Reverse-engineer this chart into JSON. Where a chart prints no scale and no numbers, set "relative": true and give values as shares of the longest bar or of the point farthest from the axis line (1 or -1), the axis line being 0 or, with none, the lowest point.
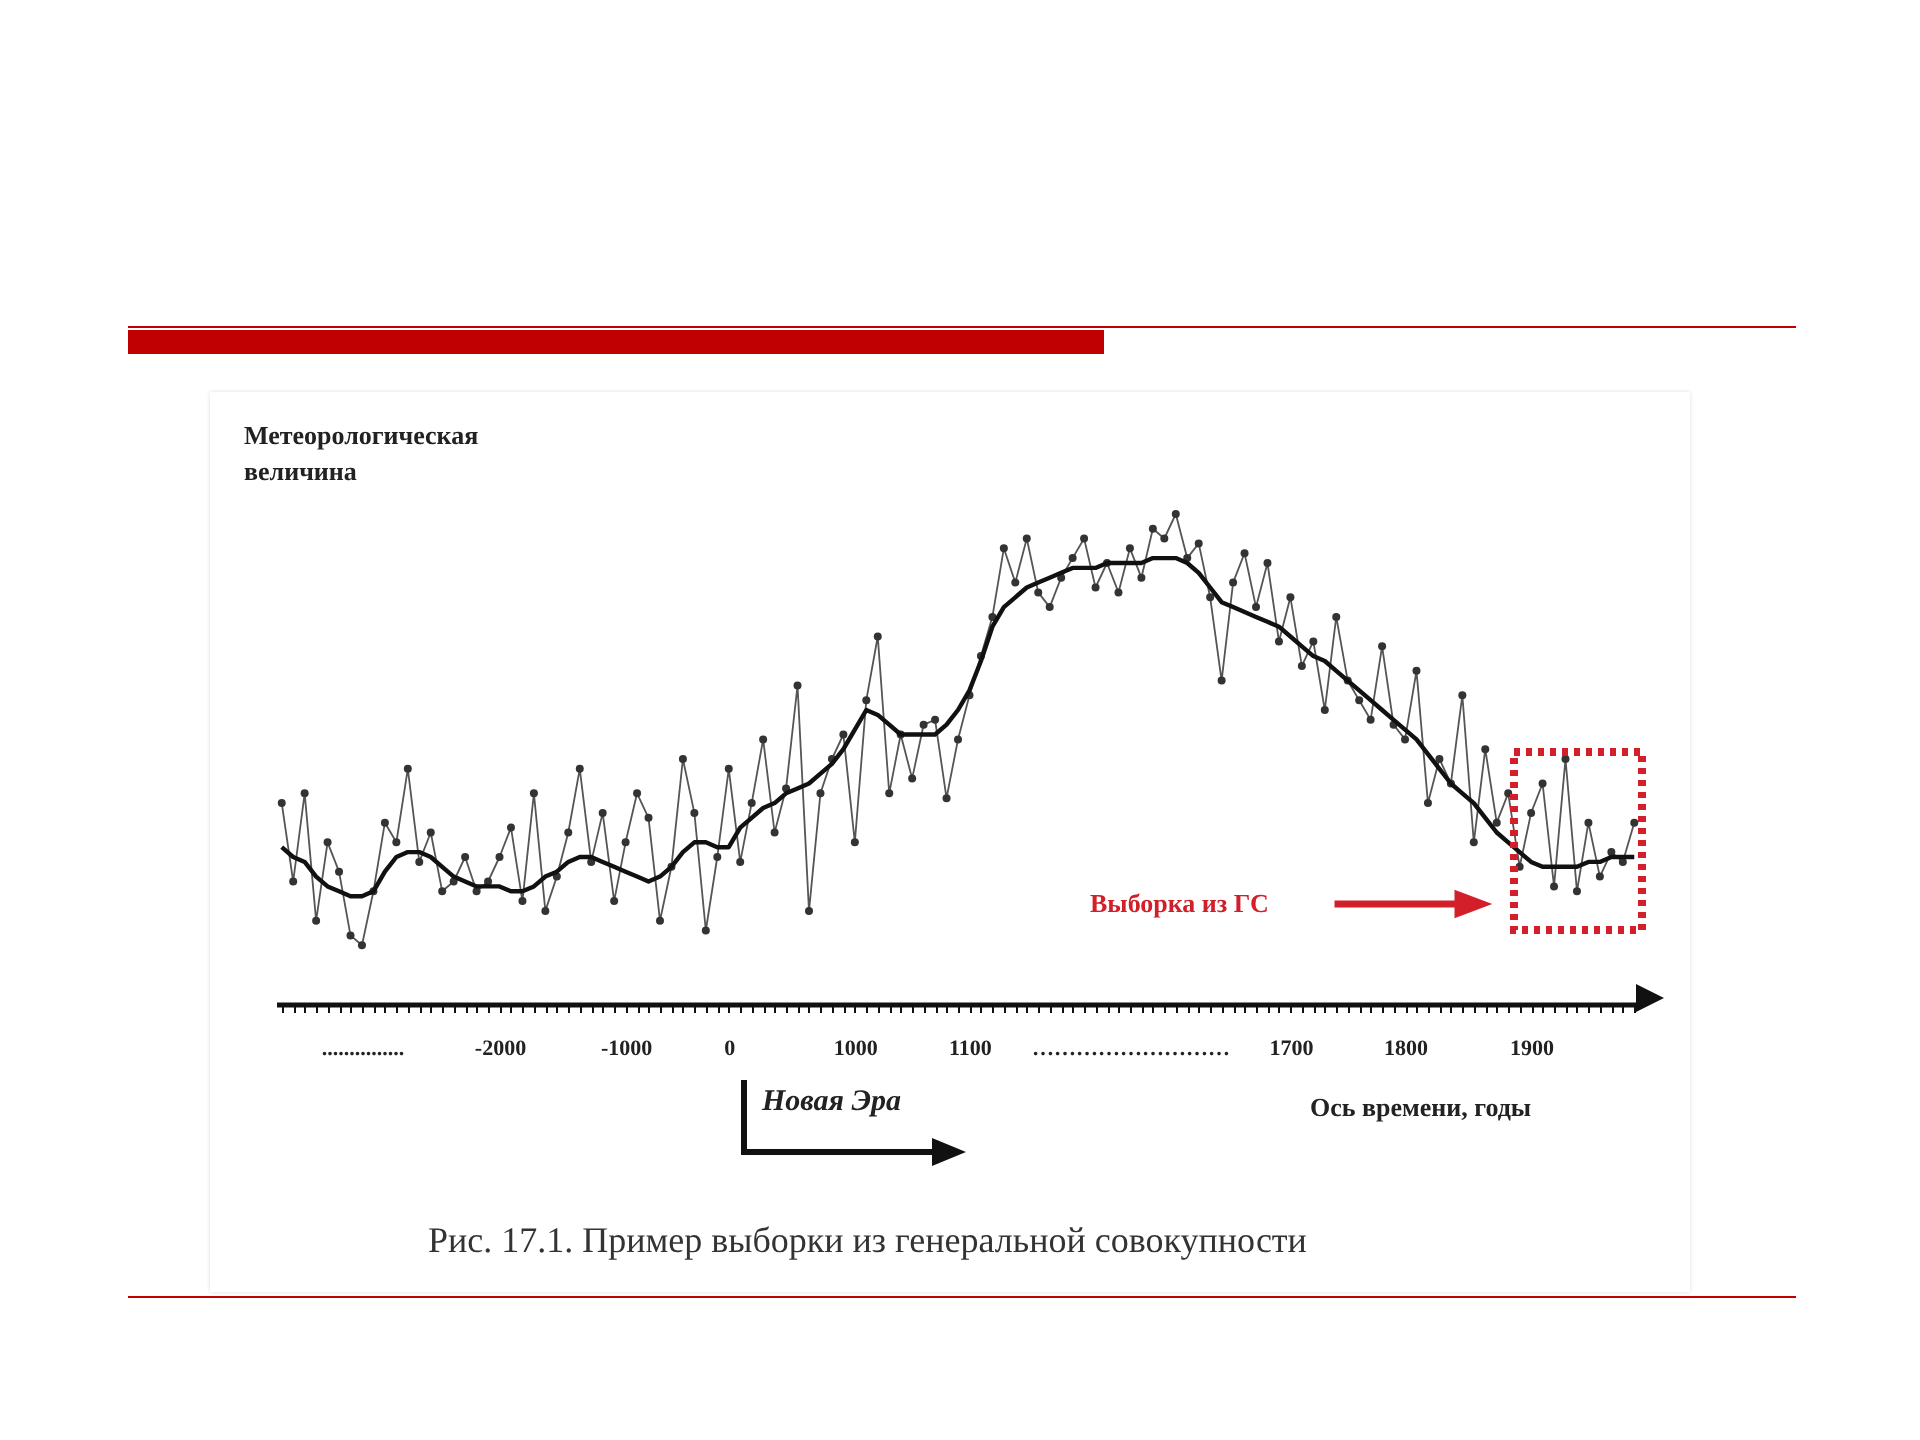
{
  "chart_data": {
    "type": "line",
    "relative": true,
    "xlabel": "Ось времени, годы",
    "ylabel": "Метеорологическая величина",
    "annotations": [
      "Выборка из ГС",
      "Новая Эра",
      "Рис. 17.1. Пример выборки из генеральной совокупности"
    ],
    "categories": [
      null,
      null,
      null,
      null,
      null,
      null,
      null,
      "...............",
      null,
      null,
      null,
      null,
      null,
      null,
      null,
      null,
      null,
      null,
      null,
      "-2000",
      null,
      null,
      null,
      null,
      null,
      null,
      null,
      null,
      null,
      null,
      "-1000",
      null,
      null,
      null,
      null,
      null,
      null,
      null,
      null,
      "0",
      null,
      null,
      null,
      null,
      null,
      null,
      null,
      null,
      null,
      null,
      "1000",
      null,
      null,
      null,
      null,
      null,
      null,
      null,
      null,
      null,
      "1100",
      null,
      null,
      null,
      null,
      null,
      null,
      null,
      null,
      null,
      null,
      null,
      null,
      null,
      "………………………",
      null,
      null,
      null,
      null,
      null,
      null,
      null,
      null,
      null,
      null,
      null,
      null,
      null,
      "1700",
      null,
      null,
      null,
      null,
      null,
      null,
      null,
      null,
      null,
      "1800",
      null,
      null,
      null,
      null,
      null,
      null,
      null,
      null,
      null,
      null,
      "1900",
      null,
      null,
      null,
      null,
      null,
      null,
      null,
      null,
      null
    ],
    "grid": false,
    "line_style": "solid",
    "series": [
      {
        "color": "#555555",
        "marker": "circle",
        "values": [
          0.41,
          0.25,
          0.43,
          0.17,
          0.33,
          0.27,
          0.14,
          0.12,
          0.23,
          0.37,
          0.33,
          0.48,
          0.29,
          0.35,
          0.23,
          0.25,
          0.3,
          0.23,
          0.25,
          0.3,
          0.36,
          0.21,
          0.43,
          0.19,
          0.26,
          0.35,
          0.48,
          0.29,
          0.39,
          0.21,
          0.33,
          0.43,
          0.38,
          0.17,
          0.28,
          0.5,
          0.39,
          0.15,
          0.3,
          0.48,
          0.29,
          0.41,
          0.54,
          0.35,
          0.44,
          0.65,
          0.19,
          0.43,
          0.5,
          0.55,
          0.33,
          0.62,
          0.75,
          0.43,
          0.55,
          0.46,
          0.57,
          0.58,
          0.42,
          0.54,
          0.63,
          0.71,
          0.79,
          0.93,
          0.86,
          0.95,
          0.84,
          0.81,
          0.87,
          0.91,
          0.95,
          0.85,
          0.9,
          0.84,
          0.93,
          0.87,
          0.97,
          0.95,
          1,
          0.91,
          0.94,
          0.83,
          0.66,
          0.86,
          0.92,
          0.81,
          0.9,
          0.74,
          0.83,
          0.69,
          0.74,
          0.6,
          0.79,
          0.66,
          0.62,
          0.58,
          0.73,
          0.57,
          0.54,
          0.68,
          0.41,
          0.5,
          0.45,
          0.63,
          0.33,
          0.52,
          0.37,
          0.43,
          0.28,
          0.39,
          0.45,
          0.24,
          0.5,
          0.23,
          0.37,
          0.26,
          0.31,
          0.29,
          0.37
        ]
      },
      {
        "color": "#111111",
        "marker": "none",
        "values": [
          0.32,
          0.3,
          0.29,
          0.26,
          0.24,
          0.23,
          0.22,
          0.22,
          0.23,
          0.27,
          0.3,
          0.31,
          0.31,
          0.3,
          0.28,
          0.26,
          0.25,
          0.24,
          0.24,
          0.24,
          0.23,
          0.23,
          0.24,
          0.26,
          0.27,
          0.29,
          0.3,
          0.3,
          0.29,
          0.28,
          0.27,
          0.26,
          0.25,
          0.26,
          0.28,
          0.31,
          0.33,
          0.33,
          0.32,
          0.32,
          0.36,
          0.38,
          0.4,
          0.41,
          0.43,
          0.44,
          0.45,
          0.47,
          0.49,
          0.52,
          0.56,
          0.6,
          0.59,
          0.57,
          0.55,
          0.55,
          0.55,
          0.55,
          0.57,
          0.6,
          0.64,
          0.7,
          0.77,
          0.81,
          0.83,
          0.85,
          0.86,
          0.87,
          0.88,
          0.89,
          0.89,
          0.89,
          0.9,
          0.9,
          0.9,
          0.9,
          0.91,
          0.91,
          0.91,
          0.9,
          0.88,
          0.85,
          0.82,
          0.81,
          0.8,
          0.79,
          0.78,
          0.77,
          0.75,
          0.73,
          0.71,
          0.7,
          0.68,
          0.66,
          0.64,
          0.62,
          0.6,
          0.58,
          0.56,
          0.54,
          0.51,
          0.48,
          0.45,
          0.43,
          0.41,
          0.38,
          0.35,
          0.33,
          0.31,
          0.29,
          0.28,
          0.28,
          0.28,
          0.28,
          0.29,
          0.29,
          0.3,
          0.3,
          0.3
        ]
      }
    ]
  }
}
